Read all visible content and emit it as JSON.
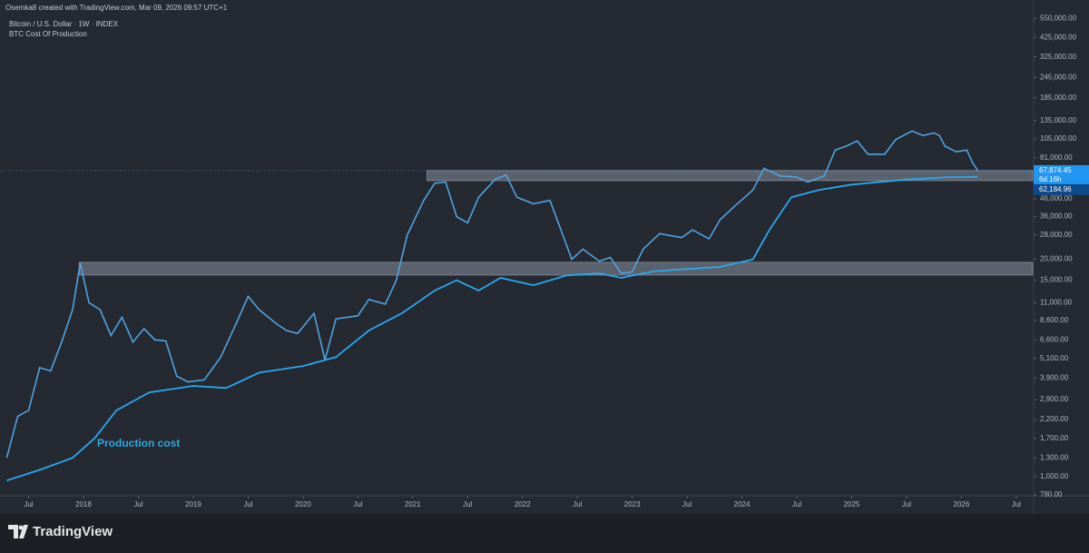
{
  "chart_data": {
    "type": "line",
    "attribution": "Osemka8 created with TradingView.com, Mar 09, 2026 09:57 UTC+1",
    "title": "Bitcoin / U.S. Dollar · 1W · INDEX",
    "subtitle": "BTC Cost Of Production",
    "annotation": "Production cost",
    "log_scale": true,
    "grid": false,
    "xlim": [
      2017.28,
      2026.65
    ],
    "xticks": [
      {
        "value": 2017.5,
        "label": "Jul"
      },
      2018,
      {
        "value": 2018.5,
        "label": "Jul"
      },
      2019,
      {
        "value": 2019.5,
        "label": "Jul"
      },
      2020,
      {
        "value": 2020.5,
        "label": "Jul"
      },
      2021,
      {
        "value": 2021.5,
        "label": "Jul"
      },
      2022,
      {
        "value": 2022.5,
        "label": "Jul"
      },
      2023,
      {
        "value": 2023.5,
        "label": "Jul"
      },
      2024,
      {
        "value": 2024.5,
        "label": "Jul"
      },
      2025,
      {
        "value": 2025.5,
        "label": "Jul"
      },
      2026,
      {
        "value": 2026.5,
        "label": "Jul"
      }
    ],
    "ylim": [
      780,
      620000
    ],
    "yticks": [
      {
        "value": 550000,
        "label": "550,000.00"
      },
      {
        "value": 425000,
        "label": "425,000.00"
      },
      {
        "value": 325000,
        "label": "325,000.00"
      },
      {
        "value": 245000,
        "label": "245,000.00"
      },
      {
        "value": 185000,
        "label": "185,000.00"
      },
      {
        "value": 135000,
        "label": "135,000.00"
      },
      {
        "value": 105000,
        "label": "105,000.00"
      },
      {
        "value": 81000,
        "label": "81,000.00"
      },
      {
        "value": 46000,
        "label": "46,000.00"
      },
      {
        "value": 36000,
        "label": "36,000.00"
      },
      {
        "value": 28000,
        "label": "28,000.00"
      },
      {
        "value": 20000,
        "label": "20,000.00"
      },
      {
        "value": 15000,
        "label": "15,000.00"
      },
      {
        "value": 11000,
        "label": "11,000.00"
      },
      {
        "value": 8600,
        "label": "8,600.00"
      },
      {
        "value": 6600,
        "label": "6,600.00"
      },
      {
        "value": 5100,
        "label": "5,100.00"
      },
      {
        "value": 3900,
        "label": "3,900.00"
      },
      {
        "value": 2900,
        "label": "2,900.00"
      },
      {
        "value": 2200,
        "label": "2,200.00"
      },
      {
        "value": 1700,
        "label": "1,700.00"
      },
      {
        "value": 1300,
        "label": "1,300.00"
      },
      {
        "value": 1000,
        "label": "1,000.00"
      },
      {
        "value": 780,
        "label": "780.00"
      }
    ],
    "zones": [
      {
        "x_start": 2017.96,
        "ylim": [
          16100,
          19200
        ]
      },
      {
        "x_start": 2021.13,
        "ylim": [
          59100,
          67900
        ]
      }
    ],
    "zone_color": "#8a929e",
    "countdown": "6d 16h",
    "series": [
      {
        "color": "#4fa3e0",
        "last_label": "67,874.45",
        "label_color": "#2196f3",
        "x": [
          2017.3,
          2017.4,
          2017.5,
          2017.6,
          2017.7,
          2017.8,
          2017.9,
          2017.97,
          2018.05,
          2018.15,
          2018.25,
          2018.35,
          2018.45,
          2018.55,
          2018.65,
          2018.75,
          2018.85,
          2018.95,
          2019.1,
          2019.25,
          2019.4,
          2019.5,
          2019.6,
          2019.75,
          2019.85,
          2019.95,
          2020.1,
          2020.2,
          2020.3,
          2020.5,
          2020.6,
          2020.75,
          2020.85,
          2020.95,
          2021.1,
          2021.2,
          2021.3,
          2021.4,
          2021.5,
          2021.6,
          2021.75,
          2021.85,
          2021.95,
          2022.1,
          2022.25,
          2022.35,
          2022.45,
          2022.55,
          2022.7,
          2022.8,
          2022.9,
          2023.0,
          2023.1,
          2023.25,
          2023.45,
          2023.55,
          2023.7,
          2023.8,
          2023.95,
          2024.1,
          2024.2,
          2024.35,
          2024.5,
          2024.6,
          2024.75,
          2024.85,
          2024.95,
          2025.05,
          2025.15,
          2025.3,
          2025.4,
          2025.55,
          2025.65,
          2025.75,
          2025.8,
          2025.85,
          2025.95,
          2026.05,
          2026.1,
          2026.15
        ],
        "values": [
          1300,
          2300,
          2500,
          4500,
          4300,
          6400,
          10000,
          19000,
          11000,
          10000,
          7000,
          9000,
          6400,
          7700,
          6600,
          6500,
          4000,
          3700,
          3800,
          5200,
          8500,
          12000,
          10000,
          8300,
          7500,
          7200,
          9500,
          5000,
          8800,
          9200,
          11500,
          10800,
          15000,
          28000,
          45000,
          57000,
          58000,
          36000,
          33000,
          47000,
          60000,
          64000,
          47000,
          43000,
          45000,
          30000,
          20000,
          23000,
          19500,
          20500,
          16500,
          16800,
          23000,
          28500,
          27000,
          30000,
          26500,
          34500,
          42500,
          52000,
          70000,
          63000,
          62000,
          58000,
          63000,
          90000,
          95000,
          102000,
          85000,
          85000,
          104000,
          117000,
          110000,
          114000,
          110000,
          95000,
          88000,
          90000,
          76000,
          67874.45
        ]
      },
      {
        "color": "#29a8ef",
        "last_label": "62,184.96",
        "label_color": "#0d4a8a",
        "x": [
          2017.3,
          2017.6,
          2017.9,
          2018.1,
          2018.3,
          2018.6,
          2019.0,
          2019.3,
          2019.6,
          2020.0,
          2020.3,
          2020.6,
          2020.9,
          2021.2,
          2021.4,
          2021.6,
          2021.8,
          2022.1,
          2022.4,
          2022.7,
          2022.9,
          2023.2,
          2023.5,
          2023.8,
          2024.1,
          2024.25,
          2024.45,
          2024.7,
          2025.0,
          2025.5,
          2025.9,
          2026.15
        ],
        "values": [
          950,
          1100,
          1300,
          1700,
          2500,
          3200,
          3500,
          3400,
          4200,
          4600,
          5200,
          7500,
          9500,
          13000,
          15000,
          13000,
          15500,
          14000,
          16000,
          16500,
          15500,
          17000,
          17500,
          18000,
          20000,
          30000,
          47000,
          52000,
          56000,
          60000,
          62000,
          62184.96
        ]
      }
    ]
  },
  "footer": {
    "brand": "TradingView"
  }
}
